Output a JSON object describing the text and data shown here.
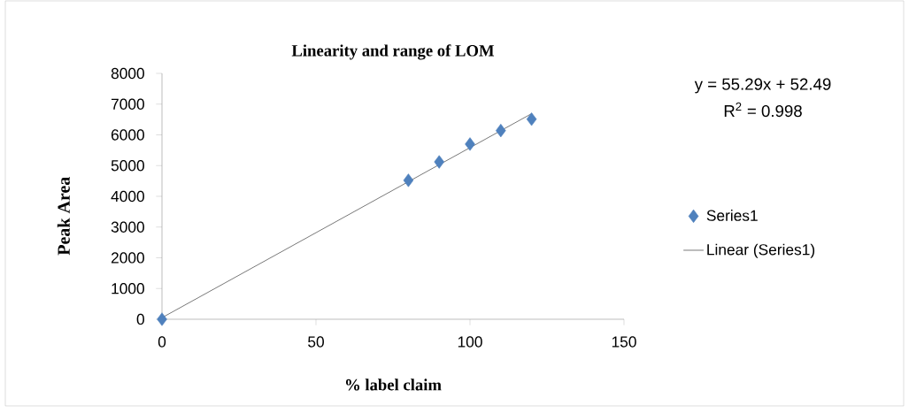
{
  "chart_data": {
    "type": "scatter",
    "title": "Linearity and range of LOM",
    "xlabel": "% label claim",
    "ylabel": "Peak Area",
    "x": [
      0,
      80,
      90,
      100,
      110,
      120
    ],
    "series": [
      {
        "name": "Series1",
        "color": "#4f81bd",
        "marker": "diamond",
        "values": [
          0,
          4520,
          5120,
          5700,
          6140,
          6510
        ]
      },
      {
        "name": "Linear (Series1)",
        "color": "#000000",
        "type": "line",
        "marker": "none",
        "x": [
          0,
          120
        ],
        "values": [
          50,
          6690
        ]
      }
    ],
    "xlim": [
      0,
      150
    ],
    "xticks": [
      0,
      50,
      100,
      150
    ],
    "ylim": [
      0,
      8000
    ],
    "yticks": [
      0,
      1000,
      2000,
      3000,
      4000,
      5000,
      6000,
      7000,
      8000
    ],
    "grid": false,
    "legend": "right",
    "annotations": [
      "y = 55.29x + 52.49",
      "R$^{2}$ = 0.998"
    ]
  }
}
